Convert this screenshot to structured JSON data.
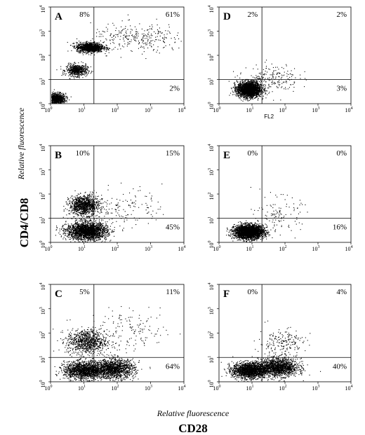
{
  "figure": {
    "y_title": "CD4/CD8",
    "y_axis_label": "Relative fluorescence",
    "x_axis_label": "Relative fluorescence",
    "x_title": "CD28"
  },
  "chart_data": [
    {
      "type": "scatter",
      "panel": "A",
      "xscale": "log",
      "yscale": "log",
      "xlim": [
        1,
        10000
      ],
      "ylim": [
        1,
        10000
      ],
      "gate_x": 20,
      "gate_y": 10,
      "quadrants": {
        "upper_left": "8%",
        "upper_right": "61%",
        "lower_left": "",
        "lower_right": "2%"
      },
      "populations": [
        {
          "cx": 1.45,
          "cy": 1.6,
          "sx": 0.14,
          "sy": 0.12,
          "n": 900
        },
        {
          "cx": 6,
          "cy": 25,
          "sx": 0.16,
          "sy": 0.12,
          "n": 600
        },
        {
          "cx": 15,
          "cy": 220,
          "sx": 0.2,
          "sy": 0.1,
          "n": 1200
        },
        {
          "cx": 400,
          "cy": 500,
          "sx": 0.7,
          "sy": 0.3,
          "n": 300
        }
      ]
    },
    {
      "type": "scatter",
      "panel": "B",
      "xscale": "log",
      "yscale": "log",
      "xlim": [
        1,
        10000
      ],
      "ylim": [
        1,
        10000
      ],
      "gate_x": 20,
      "gate_y": 10,
      "quadrants": {
        "upper_left": "10%",
        "upper_right": "15%",
        "lower_left": "",
        "lower_right": "45%"
      },
      "populations": [
        {
          "cx": 10,
          "cy": 35,
          "sx": 0.22,
          "sy": 0.2,
          "n": 1100
        },
        {
          "cx": 12,
          "cy": 3,
          "sx": 0.3,
          "sy": 0.18,
          "n": 2200
        },
        {
          "cx": 150,
          "cy": 30,
          "sx": 0.6,
          "sy": 0.4,
          "n": 150
        }
      ]
    },
    {
      "type": "scatter",
      "panel": "C",
      "xscale": "log",
      "yscale": "log",
      "xlim": [
        1,
        10000
      ],
      "ylim": [
        1,
        10000
      ],
      "gate_x": 20,
      "gate_y": 10,
      "quadrants": {
        "upper_left": "5%",
        "upper_right": "11%",
        "lower_left": "",
        "lower_right": "64%"
      },
      "populations": [
        {
          "cx": 12,
          "cy": 45,
          "sx": 0.3,
          "sy": 0.25,
          "n": 900
        },
        {
          "cx": 10,
          "cy": 3,
          "sx": 0.3,
          "sy": 0.18,
          "n": 1600
        },
        {
          "cx": 80,
          "cy": 3.5,
          "sx": 0.3,
          "sy": 0.2,
          "n": 1400
        },
        {
          "cx": 250,
          "cy": 120,
          "sx": 0.6,
          "sy": 0.4,
          "n": 150
        }
      ]
    },
    {
      "type": "scatter",
      "panel": "D",
      "xscale": "log",
      "yscale": "log",
      "xlim": [
        1,
        10000
      ],
      "ylim": [
        1,
        10000
      ],
      "gate_x": 20,
      "gate_y": 10,
      "x_tick_extra": "FL2",
      "quadrants": {
        "upper_left": "2%",
        "upper_right": "2%",
        "lower_left": "",
        "lower_right": "3%"
      },
      "populations": [
        {
          "cx": 8,
          "cy": 4,
          "sx": 0.18,
          "sy": 0.16,
          "n": 2400
        },
        {
          "cx": 40,
          "cy": 12,
          "sx": 0.4,
          "sy": 0.3,
          "n": 200
        }
      ]
    },
    {
      "type": "scatter",
      "panel": "E",
      "xscale": "log",
      "yscale": "log",
      "xlim": [
        1,
        10000
      ],
      "ylim": [
        1,
        10000
      ],
      "gate_x": 20,
      "gate_y": 10,
      "quadrants": {
        "upper_left": "0%",
        "upper_right": "0%",
        "lower_left": "",
        "lower_right": "16%"
      },
      "populations": [
        {
          "cx": 8,
          "cy": 2.8,
          "sx": 0.22,
          "sy": 0.14,
          "n": 3000
        },
        {
          "cx": 60,
          "cy": 15,
          "sx": 0.35,
          "sy": 0.35,
          "n": 120
        }
      ]
    },
    {
      "type": "scatter",
      "panel": "F",
      "xscale": "log",
      "yscale": "log",
      "xlim": [
        1,
        10000
      ],
      "ylim": [
        1,
        10000
      ],
      "gate_x": 20,
      "gate_y": 10,
      "quadrants": {
        "upper_left": "0%",
        "upper_right": "4%",
        "lower_left": "",
        "lower_right": "40%"
      },
      "populations": [
        {
          "cx": 8,
          "cy": 3,
          "sx": 0.25,
          "sy": 0.16,
          "n": 1800
        },
        {
          "cx": 60,
          "cy": 4,
          "sx": 0.3,
          "sy": 0.18,
          "n": 1600
        },
        {
          "cx": 80,
          "cy": 40,
          "sx": 0.35,
          "sy": 0.3,
          "n": 200
        }
      ]
    }
  ]
}
